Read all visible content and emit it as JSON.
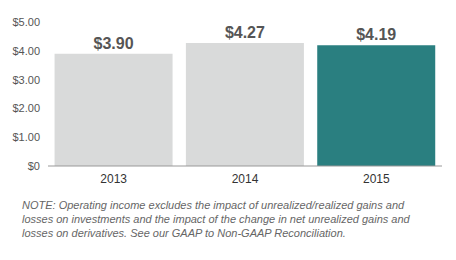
{
  "chart_data": {
    "type": "bar",
    "categories": [
      "2013",
      "2014",
      "2015"
    ],
    "values": [
      3.9,
      4.27,
      4.19
    ],
    "value_labels": [
      "$3.90",
      "$4.27",
      "$4.19"
    ],
    "colors": [
      "#d9dada",
      "#d9dada",
      "#2a7f80"
    ],
    "data_labels": true,
    "ylim": [
      0,
      5
    ],
    "yticks": [
      {
        "value": 0,
        "label": "$0"
      },
      {
        "value": 1,
        "label": "$1.00"
      },
      {
        "value": 2,
        "label": "$2.00"
      },
      {
        "value": 3,
        "label": "$3.00"
      },
      {
        "value": 4,
        "label": "$4.00"
      },
      {
        "value": 5,
        "label": "$5.00"
      }
    ],
    "grid": false,
    "annotations": [
      "NOTE: Operating income excludes the impact of unrealized/realized gains and losses on investments and the impact of the change in net unrealized gains and losses on derivatives. See our GAAP to Non-GAAP Reconciliation."
    ]
  }
}
